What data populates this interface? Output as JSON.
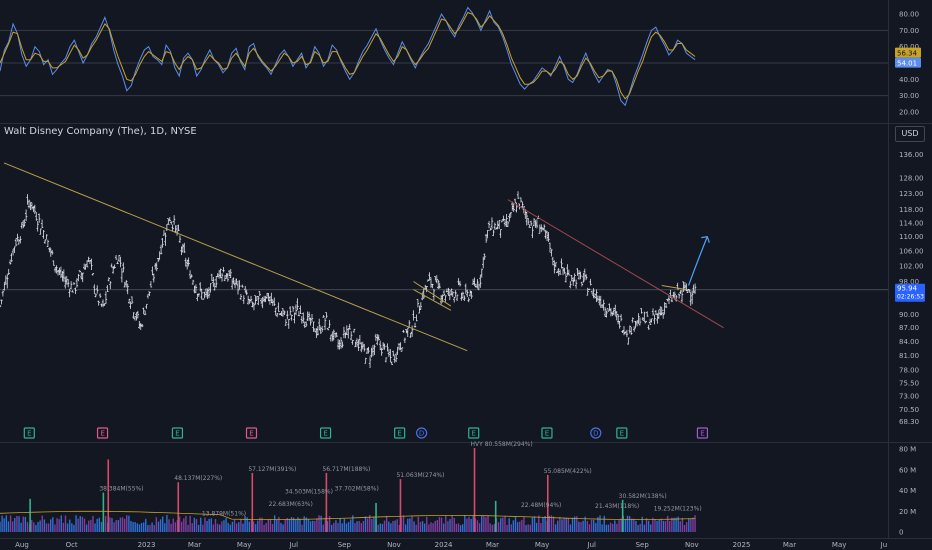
{
  "symbol_title": "Walt Disney Company (The), 1D, NYSE",
  "currency": "USD",
  "colors": {
    "background": "#131722",
    "rsi_line": "#5b8def",
    "rsi_ma": "#c9a227",
    "price_bars": "#e0e3eb",
    "trendline_upper": "#b8a14a",
    "trendline_lower": "#9b4a4a",
    "projection_arrow": "#4aa3ff",
    "volume_up": "#7b3fa0",
    "volume_down": "#2f6fd6",
    "earnings_green": "#2fb38c",
    "earnings_pink": "#e05b8a",
    "dividend_blue": "#4b6fe0"
  },
  "chart_data": [
    {
      "type": "line",
      "panel": "rsi",
      "yticks": [
        "80.00",
        "70.00",
        "60.00",
        "50.00",
        "40.00",
        "30.00",
        "20.00"
      ],
      "ylim": [
        15,
        85
      ],
      "bands": [
        70,
        50,
        30
      ],
      "current_value": "56.34",
      "ma_value": "54.01",
      "series": [
        {
          "values": [
            45,
            58,
            63,
            74,
            68,
            55,
            48,
            52,
            60,
            57,
            49,
            52,
            43,
            46,
            50,
            53,
            60,
            64,
            57,
            50,
            55,
            62,
            66,
            72,
            78,
            70,
            58,
            49,
            42,
            33,
            36,
            45,
            52,
            58,
            60,
            54,
            52,
            49,
            61,
            57,
            47,
            42,
            53,
            56,
            52,
            42,
            46,
            53,
            58,
            52,
            49,
            44,
            47,
            56,
            59,
            51,
            46,
            60,
            62,
            54,
            50,
            47,
            43,
            49,
            55,
            58,
            54,
            48,
            52,
            56,
            47,
            51,
            60,
            56,
            48,
            52,
            61,
            58,
            51,
            45,
            40,
            44,
            51,
            57,
            61,
            66,
            71,
            64,
            58,
            53,
            49,
            56,
            63,
            58,
            52,
            47,
            53,
            58,
            62,
            68,
            74,
            80,
            76,
            70,
            66,
            73,
            78,
            84,
            81,
            76,
            70,
            76,
            82,
            75,
            72,
            66,
            58,
            49,
            43,
            37,
            34,
            37,
            39,
            43,
            47,
            45,
            42,
            48,
            54,
            48,
            40,
            38,
            43,
            50,
            56,
            49,
            43,
            38,
            42,
            46,
            45,
            37,
            27,
            24,
            32,
            41,
            48,
            55,
            63,
            70,
            72,
            66,
            61,
            55,
            58,
            64,
            62,
            56,
            54,
            52
          ]
        },
        {
          "values": [
            50,
            56,
            62,
            69,
            68,
            59,
            52,
            52,
            56,
            55,
            51,
            51,
            47,
            47,
            49,
            51,
            56,
            61,
            58,
            53,
            55,
            60,
            64,
            69,
            74,
            71,
            62,
            54,
            47,
            40,
            39,
            43,
            49,
            54,
            57,
            55,
            53,
            51,
            57,
            56,
            50,
            46,
            51,
            54,
            52,
            46,
            47,
            51,
            55,
            52,
            50,
            46,
            47,
            53,
            56,
            52,
            48,
            56,
            59,
            55,
            51,
            48,
            45,
            48,
            52,
            56,
            54,
            50,
            51,
            54,
            49,
            50,
            57,
            55,
            50,
            51,
            57,
            57,
            52,
            47,
            43,
            44,
            49,
            54,
            58,
            63,
            68,
            65,
            60,
            55,
            51,
            54,
            60,
            58,
            53,
            49,
            52,
            56,
            59,
            65,
            71,
            77,
            76,
            72,
            68,
            71,
            76,
            81,
            80,
            77,
            72,
            75,
            79,
            76,
            73,
            68,
            61,
            53,
            47,
            41,
            37,
            37,
            38,
            41,
            45,
            45,
            43,
            46,
            51,
            49,
            43,
            40,
            42,
            48,
            53,
            50,
            45,
            41,
            42,
            45,
            45,
            40,
            32,
            28,
            31,
            38,
            45,
            51,
            59,
            66,
            69,
            67,
            63,
            58,
            58,
            62,
            62,
            58,
            56,
            54
          ]
        }
      ]
    },
    {
      "type": "candlestick",
      "panel": "price",
      "yticks": [
        "136.00",
        "128.00",
        "123.00",
        "118.00",
        "114.00",
        "110.00",
        "106.00",
        "102.00",
        "98.00",
        "94.00",
        "90.00",
        "87.00",
        "84.00",
        "81.00",
        "78.00",
        "75.50",
        "73.00",
        "70.50",
        "68.30"
      ],
      "ylim": [
        66,
        140
      ],
      "log_scale": true,
      "current_price": "95.94",
      "countdown": "02:26:53",
      "x_start": "2022-07-05",
      "x_end": "2025-06-30",
      "close": [
        92,
        100,
        108,
        112,
        121,
        116,
        111,
        105,
        100,
        98,
        96,
        100,
        104,
        95,
        91,
        100,
        105,
        98,
        92,
        87,
        94,
        101,
        109,
        116,
        111,
        104,
        99,
        95,
        94,
        98,
        101,
        99,
        97,
        95,
        92,
        93,
        95,
        92,
        90,
        89,
        91,
        90,
        88,
        86,
        89,
        85,
        83,
        87,
        85,
        82,
        81,
        84,
        82,
        80,
        83,
        86,
        88,
        94,
        98,
        97,
        95,
        95,
        96,
        94,
        96,
        99,
        112,
        113,
        113,
        115,
        121,
        117,
        113,
        114,
        109,
        102,
        101,
        99,
        99,
        98,
        96,
        94,
        92,
        90,
        88,
        86,
        89,
        89,
        88,
        90,
        92,
        94,
        95,
        96,
        96
      ],
      "trendlines": [
        {
          "start": [
            "2022-07-10",
            133
          ],
          "end": [
            "2024-01-30",
            82
          ]
        },
        {
          "start": [
            "2024-03-20",
            121
          ],
          "end": [
            "2024-12-10",
            87
          ]
        },
        {
          "start": [
            "2023-11-25",
            96
          ],
          "end": [
            "2024-01-10",
            91
          ]
        },
        {
          "start": [
            "2023-11-25",
            98
          ],
          "end": [
            "2024-01-10",
            92
          ]
        },
        {
          "start": [
            "2024-09-25",
            97
          ],
          "end": [
            "2024-10-25",
            96
          ]
        }
      ],
      "projection": {
        "start": [
          "2024-10-28",
          97
        ],
        "end": [
          "2024-11-20",
          110
        ]
      },
      "events": [
        {
          "type": "E",
          "color": "green",
          "date": "2022-08-10"
        },
        {
          "type": "E",
          "color": "pink",
          "date": "2022-11-08"
        },
        {
          "type": "E",
          "color": "green",
          "date": "2023-02-08"
        },
        {
          "type": "E",
          "color": "pink",
          "date": "2023-05-10"
        },
        {
          "type": "E",
          "color": "green",
          "date": "2023-08-09"
        },
        {
          "type": "E",
          "color": "green",
          "date": "2023-11-08"
        },
        {
          "type": "D",
          "color": "blue",
          "date": "2023-12-05"
        },
        {
          "type": "E",
          "color": "green",
          "date": "2024-02-07"
        },
        {
          "type": "E",
          "color": "green",
          "date": "2024-05-07"
        },
        {
          "type": "D",
          "color": "blue",
          "date": "2024-07-06"
        },
        {
          "type": "E",
          "color": "green",
          "date": "2024-08-07"
        },
        {
          "type": "E",
          "color": "purple",
          "date": "2024-11-14"
        }
      ]
    },
    {
      "type": "bar",
      "panel": "volume",
      "yticks": [
        "80 M",
        "60 M",
        "40 M",
        "20 M",
        "0"
      ],
      "ylim": [
        0,
        82
      ],
      "labels": [
        {
          "text": "38.384M(55%)",
          "date": "2022-11-09",
          "value": 38
        },
        {
          "text": "48.137M(227%)",
          "date": "2023-02-09",
          "value": 48
        },
        {
          "text": "13.879M(51%)",
          "date": "2023-03-15",
          "value": 14
        },
        {
          "text": "57.127M(391%)",
          "date": "2023-05-11",
          "value": 57
        },
        {
          "text": "22.683M(63%)",
          "date": "2023-06-05",
          "value": 23
        },
        {
          "text": "34.503M(158%)",
          "date": "2023-06-25",
          "value": 35
        },
        {
          "text": "56.717M(188%)",
          "date": "2023-08-10",
          "value": 57
        },
        {
          "text": "37.702M(58%)",
          "date": "2023-08-25",
          "value": 38
        },
        {
          "text": "51.063M(274%)",
          "date": "2023-11-09",
          "value": 51
        },
        {
          "text": "HVY 80.558M(294%)",
          "date": "2024-02-08",
          "value": 81
        },
        {
          "text": "22.48M(94%)",
          "date": "2024-04-10",
          "value": 22
        },
        {
          "text": "55.085M(422%)",
          "date": "2024-05-08",
          "value": 55
        },
        {
          "text": "21.43M(118%)",
          "date": "2024-07-10",
          "value": 21
        },
        {
          "text": "30.582M(138%)",
          "date": "2024-08-08",
          "value": 31
        },
        {
          "text": "19.252M(123%)",
          "date": "2024-09-20",
          "value": 19
        }
      ],
      "spikes": [
        {
          "date": "2022-08-11",
          "value": 32
        },
        {
          "date": "2022-11-09",
          "value": 38
        },
        {
          "date": "2023-02-09",
          "value": 48
        },
        {
          "date": "2023-05-11",
          "value": 57
        },
        {
          "date": "2023-08-10",
          "value": 57
        },
        {
          "date": "2023-11-09",
          "value": 51
        },
        {
          "date": "2024-02-08",
          "value": 81
        },
        {
          "date": "2024-05-08",
          "value": 55
        },
        {
          "date": "2024-08-08",
          "value": 31
        },
        {
          "date": "2022-11-15",
          "value": 70
        },
        {
          "date": "2023-10-10",
          "value": 28
        },
        {
          "date": "2024-03-05",
          "value": 30
        }
      ],
      "base_value": 11
    }
  ],
  "x_axis": {
    "labels": [
      {
        "text": "Aug",
        "date": "2022-08-01"
      },
      {
        "text": "Oct",
        "date": "2022-10-01"
      },
      {
        "text": "2023",
        "date": "2023-01-01"
      },
      {
        "text": "Mar",
        "date": "2023-03-01"
      },
      {
        "text": "May",
        "date": "2023-05-01"
      },
      {
        "text": "Jul",
        "date": "2023-07-01"
      },
      {
        "text": "Sep",
        "date": "2023-09-01"
      },
      {
        "text": "Nov",
        "date": "2023-11-01"
      },
      {
        "text": "2024",
        "date": "2024-01-01"
      },
      {
        "text": "Mar",
        "date": "2024-03-01"
      },
      {
        "text": "May",
        "date": "2024-05-01"
      },
      {
        "text": "Jul",
        "date": "2024-07-01"
      },
      {
        "text": "Sep",
        "date": "2024-09-01"
      },
      {
        "text": "Nov",
        "date": "2024-11-01"
      },
      {
        "text": "2025",
        "date": "2025-01-01"
      },
      {
        "text": "Mar",
        "date": "2025-03-01"
      },
      {
        "text": "May",
        "date": "2025-05-01"
      },
      {
        "text": "Ju",
        "date": "2025-06-25"
      }
    ]
  }
}
